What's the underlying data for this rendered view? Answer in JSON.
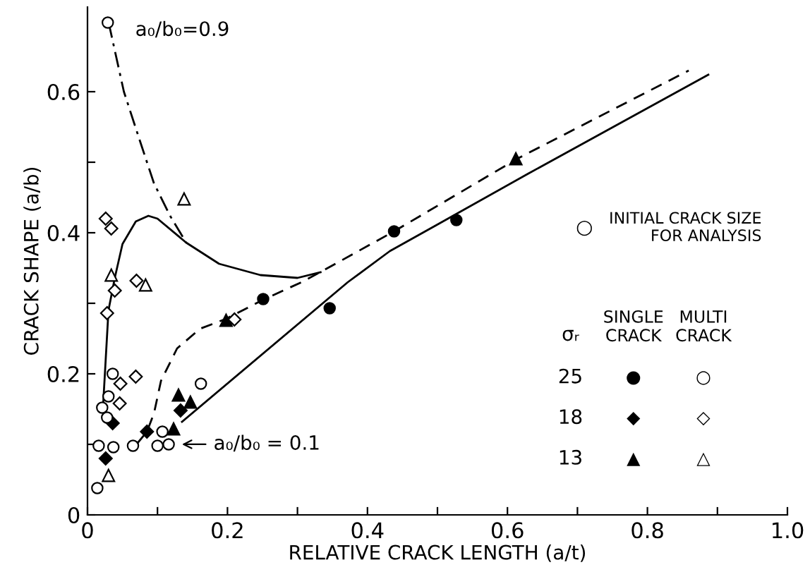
{
  "chart_data": {
    "type": "scatter",
    "xlabel": "RELATIVE CRACK LENGTH (a/t)",
    "ylabel": "CRACK SHAPE (a/b)",
    "xlim": [
      0,
      1.0
    ],
    "ylim": [
      0,
      0.72
    ],
    "xticks": [
      0,
      {
        "value": 0.1,
        "label": null
      },
      0.2,
      {
        "value": 0.3,
        "label": null
      },
      0.4,
      {
        "value": 0.5,
        "label": null
      },
      0.6,
      {
        "value": 0.7,
        "label": null
      },
      0.8,
      {
        "value": 0.9,
        "label": null
      },
      {
        "value": 1.0,
        "label": "1.0"
      }
    ],
    "yticks": [
      0,
      {
        "value": 0.1,
        "label": null
      },
      0.2,
      {
        "value": 0.3,
        "label": null
      },
      0.4,
      {
        "value": 0.5,
        "label": null
      },
      0.6
    ],
    "grid": false,
    "series": [
      {
        "type": "line",
        "line_style": "dashdot",
        "marker": "none",
        "color": "#000000",
        "x": [
          0.029,
          0.032,
          0.052,
          0.075,
          0.095,
          0.118,
          0.141
        ],
        "values": [
          0.698,
          0.69,
          0.6,
          0.53,
          0.47,
          0.424,
          0.386
        ]
      },
      {
        "type": "line",
        "line_style": "solid",
        "marker": "none",
        "color": "#000000",
        "x": [
          0.022,
          0.03,
          0.039,
          0.05,
          0.069,
          0.087,
          0.1,
          0.141,
          0.188,
          0.247,
          0.3,
          0.333
        ],
        "values": [
          0.15,
          0.29,
          0.336,
          0.384,
          0.416,
          0.424,
          0.42,
          0.386,
          0.356,
          0.34,
          0.336,
          0.344
        ]
      },
      {
        "type": "line",
        "line_style": "dashed",
        "marker": "none",
        "color": "#000000",
        "x": [
          0.07,
          0.085,
          0.095,
          0.105,
          0.128,
          0.161,
          0.198,
          0.253,
          0.306,
          0.336,
          0.438,
          0.616,
          0.859
        ],
        "values": [
          0.1,
          0.118,
          0.144,
          0.19,
          0.236,
          0.264,
          0.278,
          0.306,
          0.33,
          0.346,
          0.402,
          0.506,
          0.63
        ]
      },
      {
        "type": "line",
        "line_style": "solid",
        "marker": "none",
        "color": "#000000",
        "x": [
          0.135,
          0.372,
          0.432,
          0.497,
          0.63,
          0.887
        ],
        "values": [
          0.132,
          0.33,
          0.374,
          0.41,
          0.484,
          0.624
        ]
      },
      {
        "marker": "circle",
        "color": "#000000",
        "x": [
          0.251,
          0.346,
          0.438,
          0.527
        ],
        "values": [
          0.306,
          0.293,
          0.402,
          0.418
        ]
      },
      {
        "marker": "diamond",
        "color": "#000000",
        "x": [
          0.026,
          0.036,
          0.085,
          0.133
        ],
        "values": [
          0.08,
          0.13,
          0.118,
          0.148
        ]
      },
      {
        "marker": "triangle",
        "color": "#000000",
        "x": [
          0.123,
          0.13,
          0.147,
          0.198,
          0.612
        ],
        "values": [
          0.122,
          0.17,
          0.16,
          0.276,
          0.505
        ]
      },
      {
        "marker": "circle",
        "color": "#ffffff",
        "x": [
          0.029,
          0.014,
          0.016,
          0.021,
          0.028,
          0.037,
          0.036,
          0.03,
          0.065,
          0.1,
          0.116,
          0.107,
          0.162
        ],
        "values": [
          0.698,
          0.038,
          0.098,
          0.152,
          0.138,
          0.096,
          0.2,
          0.168,
          0.098,
          0.098,
          0.1,
          0.118,
          0.186
        ]
      },
      {
        "marker": "diamond",
        "color": "#ffffff",
        "x": [
          0.026,
          0.034,
          0.039,
          0.07,
          0.028,
          0.047,
          0.069,
          0.046,
          0.21
        ],
        "values": [
          0.42,
          0.406,
          0.318,
          0.332,
          0.286,
          0.186,
          0.196,
          0.158,
          0.277
        ]
      },
      {
        "marker": "triangle",
        "color": "#ffffff",
        "x": [
          0.138,
          0.034,
          0.083,
          0.03
        ],
        "values": [
          0.448,
          0.34,
          0.326,
          0.056
        ]
      }
    ],
    "annotations": [
      {
        "text": "a₀/b₀=0.9",
        "x": 0.029,
        "y": 0.698
      },
      "a₀/b₀ = 0.1",
      "○",
      "INITIAL CRACK SIZE\nFOR ANALYSIS",
      "σᵣ",
      "SINGLE\nCRACK",
      "MULTI\nCRACK",
      "25",
      "18",
      "13",
      "●",
      "◆",
      "▲",
      "○",
      "◇",
      "△"
    ]
  }
}
